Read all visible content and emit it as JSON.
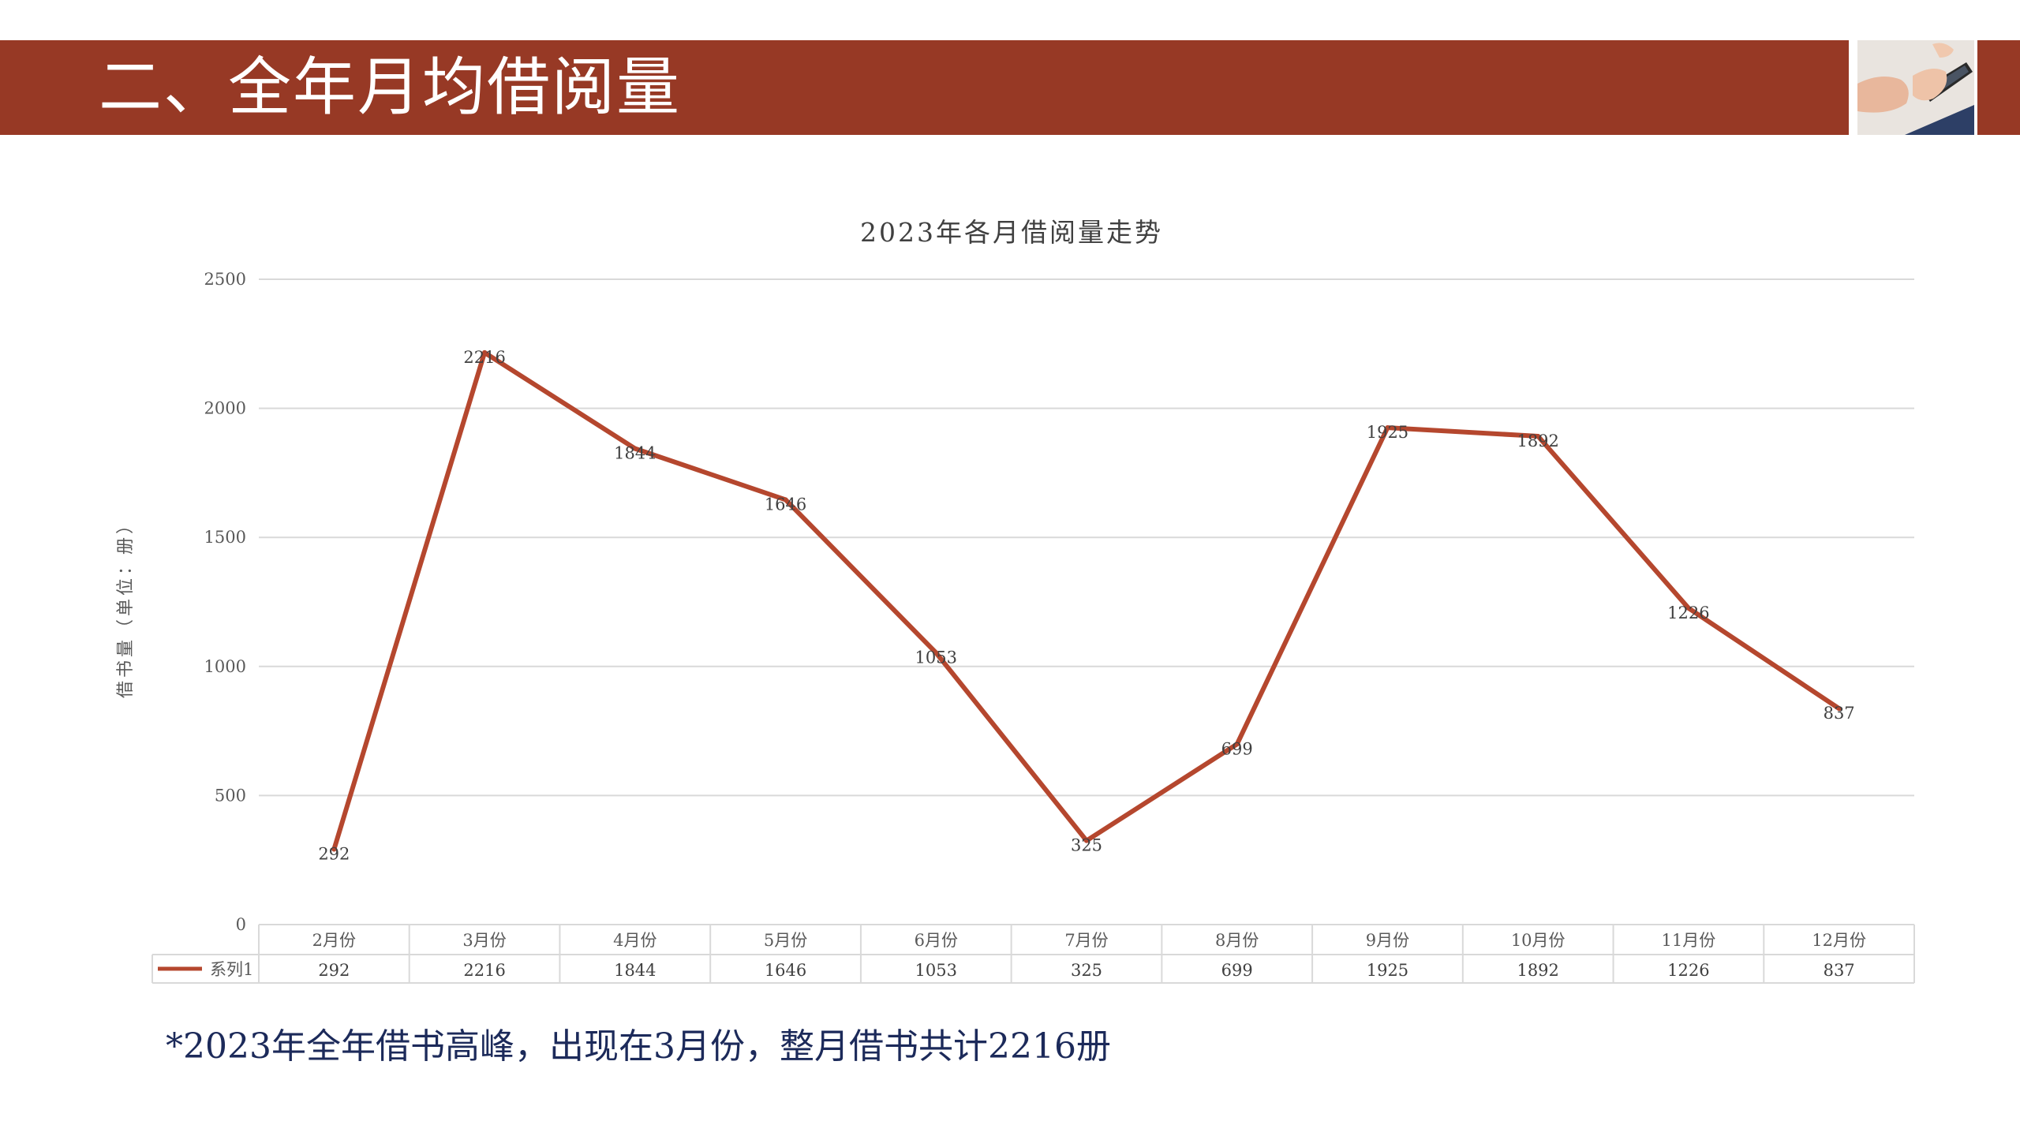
{
  "header": {
    "title": "二、全年月均借阅量"
  },
  "colors": {
    "accent": "#973925",
    "series_line": "#B5472E",
    "footnote": "#1C2A5A"
  },
  "chart_data": {
    "type": "line",
    "title": "2023年各月借阅量走势",
    "xlabel": "",
    "ylabel": "借书量（单位：册）",
    "ylim": [
      0,
      2500
    ],
    "yticks": [
      0,
      500,
      1000,
      1500,
      2000,
      2500
    ],
    "categories": [
      "2月份",
      "3月份",
      "4月份",
      "5月份",
      "6月份",
      "7月份",
      "8月份",
      "9月份",
      "10月份",
      "11月份",
      "12月份"
    ],
    "series": [
      {
        "name": "系列1",
        "values": [
          292,
          2216,
          1844,
          1646,
          1053,
          325,
          699,
          1925,
          1892,
          1226,
          837
        ]
      }
    ],
    "data_labels": true,
    "grid": true,
    "legend": "data-table"
  },
  "footnote": "*2023年全年借书高峰，出现在3月份，整月借书共计2216册"
}
